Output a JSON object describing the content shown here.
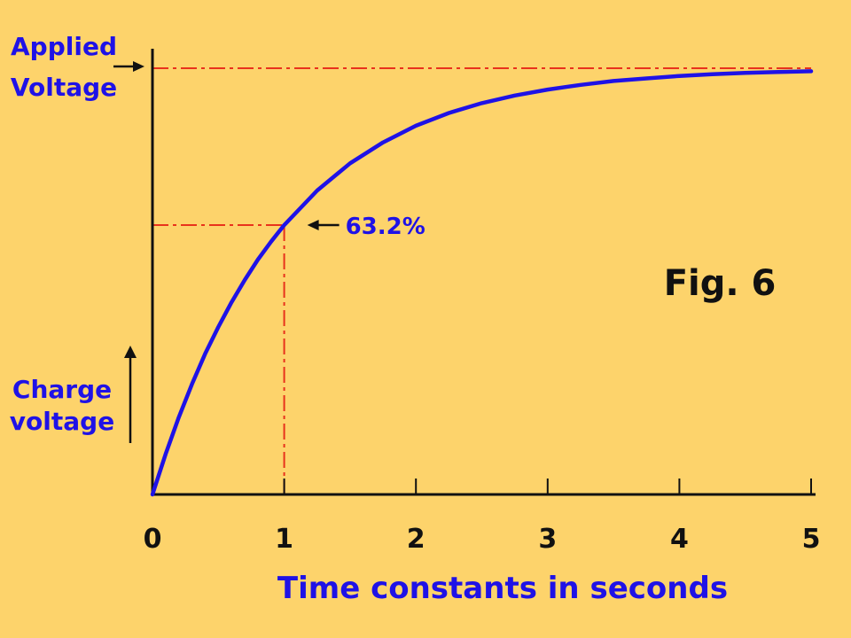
{
  "chart_data": {
    "type": "line",
    "series": [
      {
        "x": [
          0,
          0.1,
          0.2,
          0.3,
          0.4,
          0.5,
          0.6,
          0.7,
          0.8,
          0.9,
          1.0,
          1.25,
          1.5,
          1.75,
          2.0,
          2.25,
          2.5,
          2.75,
          3.0,
          3.25,
          3.5,
          3.75,
          4.0,
          4.25,
          4.5,
          4.75,
          5.0
        ],
        "y": [
          0,
          9.5,
          18.1,
          25.9,
          33.0,
          39.3,
          45.1,
          50.3,
          55.1,
          59.3,
          63.2,
          71.3,
          77.7,
          82.6,
          86.5,
          89.5,
          91.8,
          93.6,
          95.0,
          96.1,
          97.0,
          97.6,
          98.2,
          98.6,
          98.9,
          99.1,
          99.3
        ]
      }
    ],
    "xticks": [
      "0",
      "1",
      "2",
      "3",
      "4",
      "5"
    ],
    "xlabel": "Time constants in seconds",
    "ylabel": [
      "Charge",
      "voltage"
    ],
    "xlim": [
      0,
      5
    ],
    "ylim": [
      0,
      100
    ],
    "reference_lines": [
      {
        "orientation": "horizontal",
        "y": 100,
        "label": [
          "Applied",
          "Voltage"
        ]
      },
      {
        "orientation": "horizontal",
        "y": 63.2,
        "x_end": 1
      },
      {
        "orientation": "vertical",
        "x": 1,
        "y_end": 63.2
      }
    ],
    "annotations": [
      {
        "text": "63.2%",
        "x": 1,
        "y": 63.2
      }
    ],
    "figure_label": "Fig. 6",
    "grid": false
  },
  "colors": {
    "background": "#fdd36b",
    "curve": "#1f12e6",
    "reference": "#e8321c",
    "axis": "#111111",
    "label": "#1f12e6",
    "figure_label": "#111111"
  }
}
